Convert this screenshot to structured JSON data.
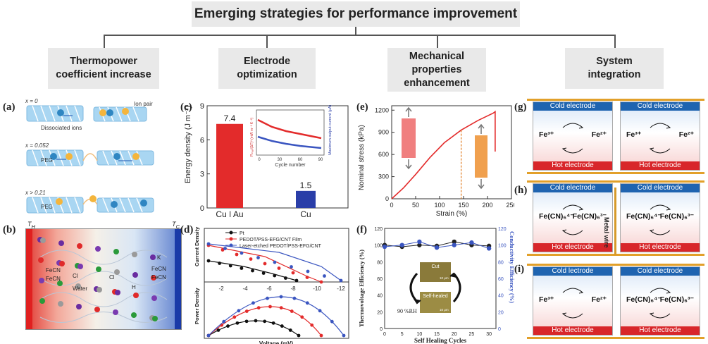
{
  "title": "Emerging strategies for performance improvement",
  "categories": [
    {
      "l1": "Thermopower",
      "l2": "coefficient increase",
      "l3": ""
    },
    {
      "l1": "Electrode",
      "l2": "optimization",
      "l3": ""
    },
    {
      "l1": "Mechanical",
      "l2": "properties",
      "l3": "enhancement"
    },
    {
      "l1": "System",
      "l2": "integration",
      "l3": ""
    }
  ],
  "panels": {
    "a": {
      "label": "(a)",
      "rows": [
        "x = 0",
        "x = 0.052",
        "x > 0.21"
      ],
      "ion_pair": "Ion pair",
      "dissociated": "Dissociated ions",
      "peg": "PEG"
    },
    "b": {
      "label": "(b)",
      "th": "T",
      "th_sub": "H",
      "tc": "T",
      "tc_sub": "C",
      "water": "Water",
      "species": [
        "FeCN",
        "FeCN",
        "Cl",
        "Cl",
        "FeCN",
        "FeCN",
        "H",
        "K"
      ]
    },
    "c": {
      "label": "(c)",
      "ylabel": "Energy density (J m⁻²)",
      "bars": [
        {
          "name": "Cu | Au",
          "value": 7.4,
          "label": "7.4"
        },
        {
          "name": "Cu",
          "value": 1.5,
          "label": "1.5"
        }
      ],
      "yticks": [
        "0",
        "3",
        "6",
        "9"
      ],
      "inset_xlabel": "Cycle number",
      "inset_xticks": [
        "0",
        "30",
        "60",
        "90"
      ],
      "inset_yleft": "Pₘₐₓ/(ΔT)² (mW m⁻² K⁻²)",
      "inset_yleft_ticks": [
        "0.001",
        "0.01",
        "0.1"
      ],
      "inset_yright": "Maximum output current (μA)",
      "inset_yright_ticks": [
        "10",
        "100",
        "1000"
      ]
    },
    "d": {
      "label": "(d)",
      "legend": [
        "Pt",
        "PEDOT/PSS-EFG/CNT Film",
        "Laser-etched PEDOT/PSS-EFG/CNT"
      ],
      "top_ylabel": "Current Density",
      "bottom_ylabel": "Power Density",
      "xlabel": "Voltage (mV)",
      "xticks": [
        "-2",
        "-4",
        "-6",
        "-8",
        "-10",
        "-12"
      ]
    },
    "e": {
      "label": "(e)",
      "ylabel": "Nominal stress (kPa)",
      "xlabel": "Strain (%)",
      "yticks": [
        "0",
        "300",
        "600",
        "900",
        "1200"
      ],
      "xticks": [
        "0",
        "50",
        "100",
        "150",
        "200",
        "250"
      ]
    },
    "f": {
      "label": "(f)",
      "ylabel_left": "Thermovoltage Efficiency (%)",
      "ylabel_right": "Conductivity Efficiency (%)",
      "xlabel": "Self Healing Cycles",
      "yticks": [
        "0",
        "20",
        "40",
        "60",
        "80",
        "100",
        "120"
      ],
      "xticks": [
        "0",
        "5",
        "10",
        "15",
        "20",
        "25",
        "30"
      ],
      "rh": "90 %RH",
      "cut": "Cut",
      "healed": "Self-healed",
      "scale": "10 μm"
    },
    "g": {
      "label": "(g)",
      "cells": [
        {
          "top": "Cold electrode",
          "bottom": "Hot electrode",
          "left": "Fe³⁺",
          "right": "Fe²⁺"
        },
        {
          "top": "Cold electrode",
          "bottom": "Hot electrode",
          "left": "Fe³⁺",
          "right": "Fe²⁺"
        }
      ]
    },
    "h": {
      "label": "(h)",
      "wire": "Metal wire",
      "cells": [
        {
          "top": "Cold electrode",
          "bottom": "Hot electrode",
          "left": "Fe(CN)₆⁴⁻",
          "right": "Fe(CN)₆³⁻"
        },
        {
          "top": "Cold electrode",
          "bottom": "Hot electrode",
          "left": "Fe(CN)₆⁴⁻",
          "right": "Fe(CN)₆³⁻"
        }
      ]
    },
    "i": {
      "label": "(i)",
      "cells": [
        {
          "top": "Cold lectrode",
          "bottom": "Hot electrode",
          "left": "Fe³⁺",
          "right": "Fe²⁺"
        },
        {
          "top": "Cold electrode",
          "bottom": "Hot electrode",
          "left": "Fe(CN)₆⁴⁻",
          "right": "Fe(CN)₆³⁻"
        }
      ]
    }
  },
  "colors": {
    "box": "#e9e9e9",
    "cold": "#1f64b0",
    "hot": "#d8262a",
    "red_series": "#e32b2b",
    "blue_series": "#3a55c0",
    "orange": "#e07a1c"
  }
}
